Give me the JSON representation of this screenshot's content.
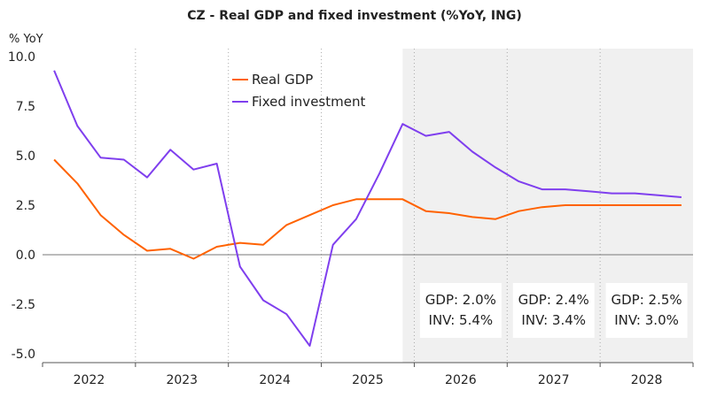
{
  "chart_data": {
    "type": "line",
    "title": "CZ - Real GDP and fixed investment (%YoY, ING)",
    "ylabel": "% YoY",
    "ylim": [
      -5,
      10
    ],
    "yticks": [
      "10.0",
      "7.5",
      "5.0",
      "2.5",
      "0.0",
      "-2.5",
      "-5.0"
    ],
    "years": [
      "2022",
      "2023",
      "2024",
      "2025",
      "2026",
      "2027",
      "2028"
    ],
    "x_quarters": [
      "2022Q1",
      "2022Q2",
      "2022Q3",
      "2022Q4",
      "2023Q1",
      "2023Q2",
      "2023Q3",
      "2023Q4",
      "2024Q1",
      "2024Q2",
      "2024Q3",
      "2024Q4",
      "2025Q1",
      "2025Q2",
      "2025Q3",
      "2025Q4",
      "2026Q1",
      "2026Q2",
      "2026Q3",
      "2026Q4",
      "2027Q1",
      "2027Q2",
      "2027Q3",
      "2027Q4",
      "2028Q1",
      "2028Q2",
      "2028Q3",
      "2028Q4"
    ],
    "forecast_start": "2025Q4",
    "grid": {
      "vertical_dotted": true,
      "horizontal": false
    },
    "legend_position": "top-center",
    "series": [
      {
        "name": "Real GDP",
        "color": "#ff6200",
        "values": [
          4.8,
          3.6,
          2.0,
          1.0,
          0.2,
          0.3,
          -0.2,
          0.4,
          0.6,
          0.5,
          1.5,
          2.0,
          2.5,
          2.8,
          2.8,
          2.8,
          2.2,
          2.1,
          1.9,
          1.8,
          2.2,
          2.4,
          2.5,
          2.5,
          2.5,
          2.5,
          2.5,
          2.5
        ]
      },
      {
        "name": "Fixed investment",
        "color": "#7f3fee",
        "values": [
          9.3,
          6.5,
          4.9,
          4.8,
          3.9,
          5.3,
          4.3,
          4.6,
          -0.6,
          -2.3,
          -3.0,
          -4.6,
          0.5,
          1.8,
          4.1,
          6.6,
          6.0,
          6.2,
          5.2,
          4.4,
          3.7,
          3.3,
          3.3,
          3.2,
          3.1,
          3.1,
          3.0,
          2.9
        ]
      }
    ],
    "annotations": [
      {
        "year": "2026",
        "line1": "GDP: 2.0%",
        "line2": "INV: 5.4%"
      },
      {
        "year": "2027",
        "line1": "GDP: 2.4%",
        "line2": "INV: 3.4%"
      },
      {
        "year": "2028",
        "line1": "GDP: 2.5%",
        "line2": "INV: 3.0%"
      }
    ]
  }
}
